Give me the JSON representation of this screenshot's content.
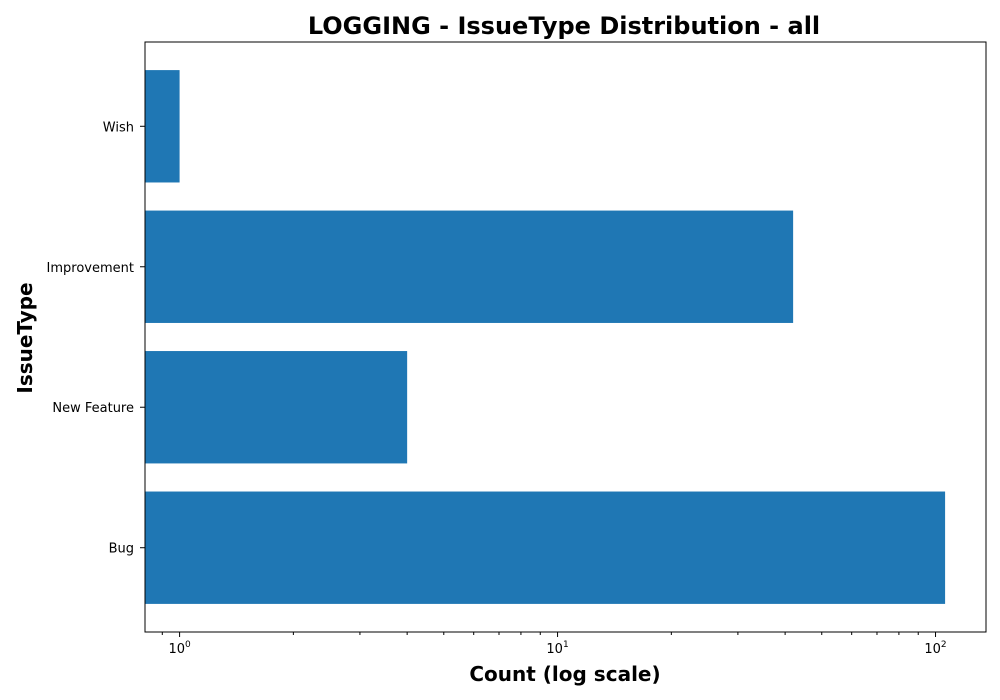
{
  "chart_data": {
    "type": "bar",
    "orientation": "horizontal",
    "title": "LOGGING - IssueType Distribution - all",
    "xlabel": "Count (log scale)",
    "ylabel": "IssueType",
    "x_scale": "log",
    "xlim": [
      0.81,
      136
    ],
    "categories": [
      "Bug",
      "New Feature",
      "Improvement",
      "Wish"
    ],
    "values": [
      106,
      4,
      42,
      1
    ],
    "x_ticks": [
      {
        "value": 1,
        "base": "10",
        "exp": "0"
      },
      {
        "value": 10,
        "base": "10",
        "exp": "1"
      },
      {
        "value": 100,
        "base": "10",
        "exp": "2"
      }
    ],
    "bar_color": "#1f77b4",
    "grid": false,
    "legend": "none"
  }
}
